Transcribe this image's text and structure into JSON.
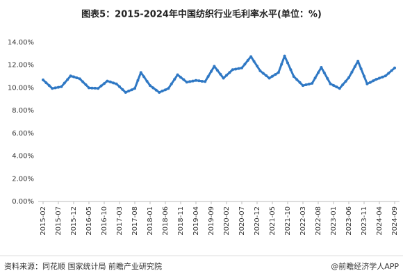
{
  "chart_data": {
    "type": "line",
    "title": "图表5：2015-2024年中国纺织行业毛利率水平(单位：%)",
    "source": "资料来源：同花顺 国家统计局 前瞻产业研究院",
    "credit": "@前瞻经济学人APP",
    "categories": [
      "2015-02",
      null,
      null,
      null,
      null,
      "2015-07",
      null,
      null,
      null,
      null,
      "2015-12",
      null,
      null,
      null,
      null,
      "2016-05",
      null,
      null,
      null,
      null,
      "2016-10",
      null,
      null,
      null,
      null,
      "2017-03",
      null,
      null,
      null,
      null,
      "2017-08",
      null,
      null,
      null,
      null,
      "2018-01",
      null,
      null,
      null,
      null,
      "2018-06",
      null,
      null,
      null,
      null,
      "2018-11",
      null,
      null,
      null,
      null,
      "2019-04",
      null,
      null,
      null,
      null,
      "2019-09",
      null,
      null,
      null,
      null,
      "2020-02",
      null,
      null,
      null,
      null,
      "2020-07",
      null,
      null,
      null,
      null,
      "2020-12",
      null,
      null,
      null,
      null,
      "2021-05",
      null,
      null,
      null,
      null,
      "2021-10",
      null,
      null,
      null,
      null,
      "2022-03",
      null,
      null,
      null,
      null,
      "2022-08",
      null,
      null,
      null,
      null,
      "2023-01",
      null,
      null,
      null,
      null,
      "2023-06",
      null,
      null,
      null,
      null,
      "2023-11",
      null,
      null,
      null,
      null,
      "2024-04",
      null,
      null,
      null,
      null,
      "2024-09"
    ],
    "series": [
      {
        "name": "毛利率",
        "color": "#2f78c4",
        "values": [
          10.7,
          10.45,
          10.2,
          9.95,
          10.0,
          10.05,
          10.1,
          10.42,
          10.73,
          11.05,
          10.97,
          10.88,
          10.8,
          10.53,
          10.27,
          10.0,
          9.98,
          9.97,
          9.95,
          10.17,
          10.38,
          10.6,
          10.52,
          10.43,
          10.35,
          10.1,
          9.85,
          9.6,
          9.72,
          9.83,
          9.95,
          10.65,
          11.35,
          10.97,
          10.58,
          10.2,
          10.0,
          9.8,
          9.6,
          9.72,
          9.83,
          9.95,
          10.35,
          10.75,
          11.15,
          10.93,
          10.72,
          10.5,
          10.55,
          10.6,
          10.65,
          10.62,
          10.58,
          10.55,
          11.0,
          11.45,
          11.9,
          11.55,
          11.2,
          10.85,
          11.1,
          11.35,
          11.6,
          11.65,
          11.7,
          11.75,
          12.08,
          12.42,
          12.75,
          12.33,
          11.92,
          11.5,
          11.28,
          11.07,
          10.85,
          11.02,
          11.18,
          11.35,
          12.07,
          12.8,
          12.2,
          11.6,
          11.0,
          10.73,
          10.47,
          10.2,
          10.27,
          10.33,
          10.4,
          10.87,
          11.33,
          11.8,
          11.32,
          10.83,
          10.35,
          10.22,
          10.08,
          9.95,
          10.27,
          10.58,
          10.9,
          11.38,
          11.87,
          12.35,
          11.68,
          11.02,
          10.35,
          10.48,
          10.62,
          10.75,
          10.85,
          10.95,
          11.05,
          11.28,
          11.52,
          11.75
        ]
      }
    ],
    "ylim": [
      0,
      14
    ],
    "yticks": [
      {
        "value": 0,
        "label": "0.00%"
      },
      {
        "value": 2,
        "label": "2.00%"
      },
      {
        "value": 4,
        "label": "4.00%"
      },
      {
        "value": 6,
        "label": "6.00%"
      },
      {
        "value": 8,
        "label": "8.00%"
      },
      {
        "value": 10,
        "label": "10.00%"
      },
      {
        "value": 12,
        "label": "12.00%"
      },
      {
        "value": 14,
        "label": "14.00%"
      }
    ],
    "grid": false
  }
}
